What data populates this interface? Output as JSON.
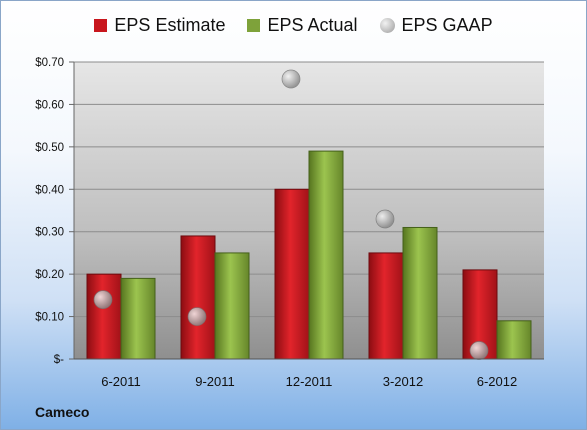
{
  "chart_data": {
    "type": "bar",
    "categories": [
      "6-2011",
      "9-2011",
      "12-2011",
      "3-2012",
      "6-2012"
    ],
    "series": [
      {
        "name": "EPS Estimate",
        "marker": "bar",
        "color": "#c8161d",
        "values": [
          0.2,
          0.29,
          0.4,
          0.25,
          0.21
        ]
      },
      {
        "name": "EPS Actual",
        "marker": "bar",
        "color": "#7ea23a",
        "values": [
          0.19,
          0.25,
          0.49,
          0.31,
          0.09
        ]
      },
      {
        "name": "EPS GAAP",
        "marker": "circle",
        "color": "#a9a9a9",
        "values": [
          0.14,
          0.1,
          0.66,
          0.33,
          0.02
        ]
      }
    ],
    "y_ticks": [
      "$-",
      "$0.10",
      "$0.20",
      "$0.30",
      "$0.40",
      "$0.50",
      "$0.60",
      "$0.70"
    ],
    "ylim": [
      0,
      0.7
    ],
    "grid": true,
    "legend_position": "top"
  },
  "company_label": "Cameco"
}
